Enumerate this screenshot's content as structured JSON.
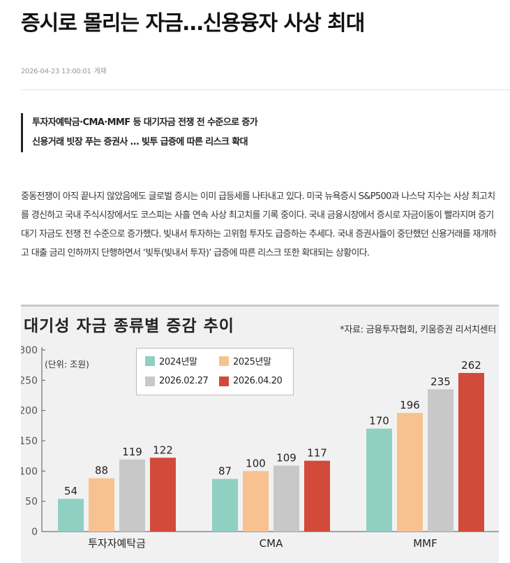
{
  "article": {
    "headline": "증시로 몰리는 자금…신용융자 사상 최대",
    "date": "2026-04-23 13:00:01",
    "date_suffix": "게재",
    "summary": [
      "투자자예탁금·CMA·MMF 등 대기자금 전쟁 전 수준으로 증가",
      "신용거래 빗장 푸는 증권사 … 빚투 급증에 따른 리스크 확대"
    ],
    "body": "중동전쟁이 아직 끝나지 않았음에도 글로벌 증시는 이미 급등세를 나타내고 있다. 미국 뉴욕증시 S&P500과 나스닥 지수는 사상 최고치를 경신하고 국내 주식시장에서도 코스피는 사흘 연속 사상 최고치를 기록 중이다. 국내 금융시장에서 증시로 자금이동이 빨라지며 증기 대기 자금도 전쟁 전 수준으로 증가했다. 빚내서 투자하는 고위험 투자도 급증하는 추세다. 국내 증권사들이 중단했던 신용거래를 재개하고 대출 금리 인하까지 단행하면서 ‘빚투(빚내서 투자)’ 급증에 따른 리스크 또한 확대되는 상황이다."
  },
  "chart_data": {
    "type": "bar",
    "title": "대기성 자금 종류별 증감 추이",
    "source": "*자료: 금융투자협회, 키움증권 리서치센터",
    "unit": "(단위: 조원)",
    "categories": [
      "투자자예탁금",
      "CMA",
      "MMF"
    ],
    "series": [
      {
        "name": "2024년말",
        "color": "#8fd0c3",
        "values": [
          54,
          87,
          170
        ]
      },
      {
        "name": "2025년말",
        "color": "#f7c28f",
        "values": [
          88,
          100,
          196
        ]
      },
      {
        "name": "2026.02.27",
        "color": "#c8c8c8",
        "values": [
          119,
          109,
          235
        ]
      },
      {
        "name": "2026.04.20",
        "color": "#d24a3a",
        "values": [
          122,
          117,
          262
        ]
      }
    ],
    "ylim": [
      0,
      300
    ],
    "yticks": [
      0,
      50,
      100,
      150,
      200,
      250,
      300
    ],
    "grid": false,
    "legend_position": "top-left"
  }
}
